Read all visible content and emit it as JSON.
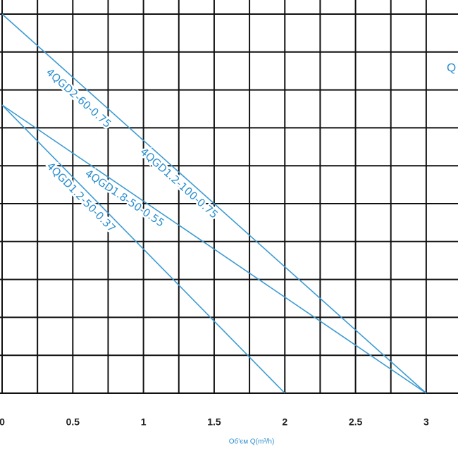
{
  "chart_data": {
    "type": "line",
    "x_label": "Об'єм Q(m³/h)",
    "y_label": "Q",
    "annotations": [
      "4QGD2-60-0.75"
    ],
    "xlim": [
      0,
      3.225
    ],
    "ylim": [
      0,
      100
    ],
    "xticks": [
      0,
      0.5,
      1,
      1.5,
      2,
      2.5,
      3
    ],
    "xgrid": [
      0,
      0.25,
      0.5,
      0.75,
      1,
      1.25,
      1.5,
      1.75,
      2,
      2.25,
      2.5,
      2.75,
      3
    ],
    "ygrid": [
      0,
      10,
      20,
      30,
      40,
      50,
      60,
      70,
      80,
      90,
      100
    ],
    "grid": true,
    "series": [
      {
        "name": "4QGD1.2-100-0.75",
        "color": "#3d9bd3",
        "x": [
          0,
          3
        ],
        "values": [
          100,
          0
        ]
      },
      {
        "name": "4QGD1.8-50-0.55",
        "color": "#3d9bd3",
        "x": [
          0,
          3
        ],
        "values": [
          76,
          0
        ]
      },
      {
        "name": "4QGD1.2-50-0.37",
        "color": "#3d9bd3",
        "x": [
          0,
          2
        ],
        "values": [
          76,
          0
        ]
      }
    ]
  }
}
